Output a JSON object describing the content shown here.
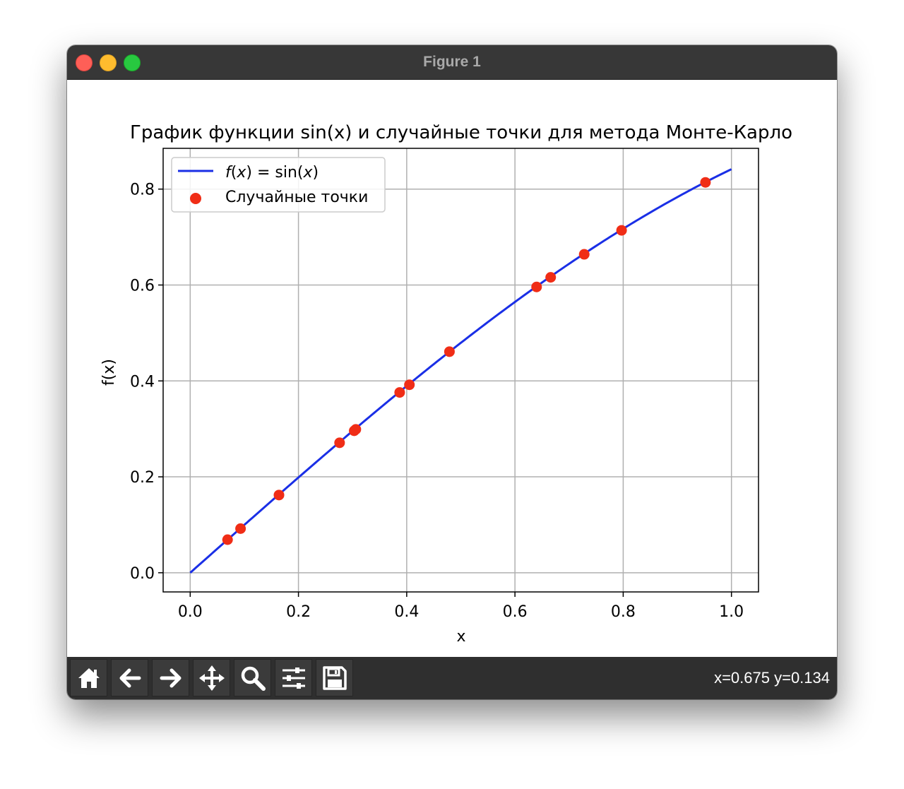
{
  "window": {
    "title": "Figure 1"
  },
  "toolbar": {
    "buttons": [
      {
        "name": "home-button",
        "icon": "home-icon"
      },
      {
        "name": "back-button",
        "icon": "arrow-left-icon"
      },
      {
        "name": "forward-button",
        "icon": "arrow-right-icon"
      },
      {
        "name": "pan-button",
        "icon": "move-icon"
      },
      {
        "name": "zoom-button",
        "icon": "magnifier-icon"
      },
      {
        "name": "configure-subplots-button",
        "icon": "sliders-icon"
      },
      {
        "name": "save-button",
        "icon": "floppy-disk-icon"
      }
    ],
    "coords": "x=0.675 y=0.134"
  },
  "chart_data": {
    "type": "scatter",
    "title": "График функции sin(x) и случайные точки для метода Монте-Карло",
    "xlabel": "x",
    "ylabel": "f(x)",
    "xlim": [
      -0.05,
      1.05
    ],
    "ylim": [
      -0.04,
      0.885
    ],
    "xticks": [
      "0.0",
      "0.2",
      "0.4",
      "0.6",
      "0.8",
      "1.0"
    ],
    "yticks": [
      "0.0",
      "0.2",
      "0.4",
      "0.6",
      "0.8"
    ],
    "grid": true,
    "legend_position": "upper left",
    "legend": [
      {
        "label": "f(x) = sin(x)",
        "marker": "line",
        "color": "#1a2fe6"
      },
      {
        "label": "Случайные точки",
        "marker": "dot",
        "color": "#f02d16"
      }
    ],
    "series": [
      {
        "name": "f(x) = sin(x)",
        "kind": "line",
        "function": "sin",
        "x_range": [
          0,
          1
        ],
        "color": "#1a2fe6"
      },
      {
        "name": "Случайные точки",
        "kind": "scatter",
        "color": "#f02d16",
        "points": [
          [
            0.069,
            0.069
          ],
          [
            0.093,
            0.092
          ],
          [
            0.164,
            0.162
          ],
          [
            0.276,
            0.271
          ],
          [
            0.303,
            0.296
          ],
          [
            0.306,
            0.299
          ],
          [
            0.387,
            0.376
          ],
          [
            0.405,
            0.392
          ],
          [
            0.479,
            0.461
          ],
          [
            0.64,
            0.596
          ],
          [
            0.666,
            0.616
          ],
          [
            0.728,
            0.664
          ],
          [
            0.797,
            0.714
          ],
          [
            0.952,
            0.814
          ]
        ]
      }
    ]
  }
}
